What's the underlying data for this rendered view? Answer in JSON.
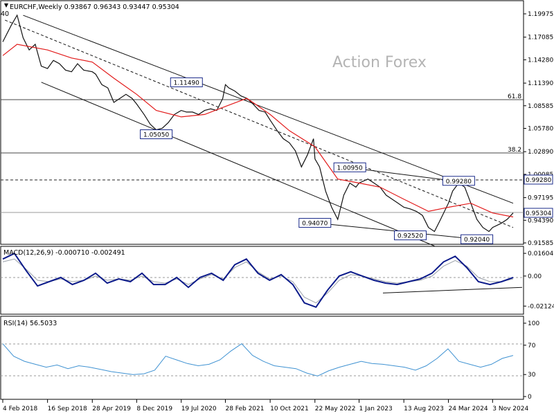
{
  "header": {
    "main": "EURCHF,Weekly  0.93867 0.96343 0.93447 0.95304",
    "corner_fragment": "40",
    "macd": "MACD(12,26,9) -0.000710 -0.002491",
    "rsi": "RSI(14) 56.5033"
  },
  "watermark": "Action Forex",
  "colors": {
    "price": "#111111",
    "ma": "#e21b1b",
    "macd_main": "#0b1a8a",
    "macd_signal": "#9aa0a8",
    "rsi": "#3f92d2",
    "grid": "#9a9a9a",
    "price_box_fill": "#ffffff",
    "price_box_stroke": "#1a2a8a"
  },
  "chart_data": {
    "type": "line",
    "timeframe": "Weekly",
    "symbol": "EURCHF",
    "x": [
      "4 Feb 2018",
      "16 Sep 2018",
      "28 Apr 2019",
      "8 Dec 2019",
      "19 Jul 2020",
      "28 Feb 2021",
      "10 Oct 2021",
      "22 May 2022",
      "1 Jan 2023",
      "13 Aug 2023",
      "24 Mar 2024",
      "3 Nov 2024"
    ],
    "price_axis": [
      "1.19975",
      "1.17085",
      "1.14280",
      "1.11390",
      "1.08585",
      "1.05780",
      "1.02890",
      "1.00085",
      "0.97195",
      "0.94390",
      "0.91585"
    ],
    "ylim": [
      0.91,
      1.205
    ],
    "series": [
      {
        "name": "",
        "role": "close",
        "points": [
          [
            "4 Feb 2018",
            1.165
          ],
          [
            "Mar 2018",
            1.185
          ],
          [
            "Apr 2018",
            1.198
          ],
          [
            "May 2018",
            1.17
          ],
          [
            "Jun 2018",
            1.155
          ],
          [
            "Jul 2018",
            1.162
          ],
          [
            "Aug 2018",
            1.135
          ],
          [
            "16 Sep 2018",
            1.132
          ],
          [
            "Oct 2018",
            1.142
          ],
          [
            "Nov 2018",
            1.138
          ],
          [
            "Dec 2018",
            1.13
          ],
          [
            "Jan 2019",
            1.128
          ],
          [
            "Feb 2019",
            1.138
          ],
          [
            "Mar 2019",
            1.13
          ],
          [
            "28 Apr 2019",
            1.128
          ],
          [
            "May 2019",
            1.125
          ],
          [
            "Jun 2019",
            1.112
          ],
          [
            "Jul 2019",
            1.108
          ],
          [
            "Aug 2019",
            1.09
          ],
          [
            "Sep 2019",
            1.095
          ],
          [
            "Oct 2019",
            1.1
          ],
          [
            "Nov 2019",
            1.095
          ],
          [
            "8 Dec 2019",
            1.088
          ],
          [
            "Jan 2020",
            1.075
          ],
          [
            "Feb 2020",
            1.063
          ],
          [
            "Mar 2020",
            1.056
          ],
          [
            "Apr 2020",
            1.058
          ],
          [
            "May 2020",
            1.065
          ],
          [
            "Jun 2020",
            1.075
          ],
          [
            "19 Jul 2020",
            1.08
          ],
          [
            "Aug 2020",
            1.078
          ],
          [
            "Sep 2020",
            1.078
          ],
          [
            "Oct 2020",
            1.075
          ],
          [
            "Nov 2020",
            1.08
          ],
          [
            "Dec 2020",
            1.082
          ],
          [
            "Jan 2021",
            1.08
          ],
          [
            "Feb 2021",
            1.095
          ],
          [
            "28 Feb 2021",
            1.112
          ],
          [
            "Mar 2021",
            1.108
          ],
          [
            "Apr 2021",
            1.104
          ],
          [
            "May 2021",
            1.098
          ],
          [
            "Jun 2021",
            1.095
          ],
          [
            "Jul 2021",
            1.088
          ],
          [
            "Aug 2021",
            1.08
          ],
          [
            "Sep 2021",
            1.078
          ],
          [
            "10 Oct 2021",
            1.068
          ],
          [
            "Nov 2021",
            1.055
          ],
          [
            "Dec 2021",
            1.045
          ],
          [
            "Jan 2022",
            1.04
          ],
          [
            "Feb 2022",
            1.03
          ],
          [
            "Mar 2022",
            1.01
          ],
          [
            "Apr 2022",
            1.025
          ],
          [
            "May 2022",
            1.045
          ],
          [
            "22 May 2022",
            1.02
          ],
          [
            "Jun 2022",
            1.01
          ],
          [
            "Jul 2022",
            0.98
          ],
          [
            "Aug 2022",
            0.96
          ],
          [
            "Sep 2022",
            0.945
          ],
          [
            "Oct 2022",
            0.975
          ],
          [
            "Nov 2022",
            0.99
          ],
          [
            "Dec 2022",
            0.985
          ],
          [
            "1 Jan 2023",
            0.99
          ],
          [
            "Feb 2023",
            0.995
          ],
          [
            "Mar 2023",
            0.99
          ],
          [
            "Apr 2023",
            0.985
          ],
          [
            "May 2023",
            0.975
          ],
          [
            "Jun 2023",
            0.97
          ],
          [
            "Jul 2023",
            0.965
          ],
          [
            "13 Aug 2023",
            0.96
          ],
          [
            "Sep 2023",
            0.958
          ],
          [
            "Oct 2023",
            0.955
          ],
          [
            "Nov 2023",
            0.95
          ],
          [
            "Dec 2023",
            0.935
          ],
          [
            "Jan 2024",
            0.93
          ],
          [
            "Feb 2024",
            0.945
          ],
          [
            "24 Mar 2024",
            0.965
          ],
          [
            "Apr 2024",
            0.98
          ],
          [
            "May 2024",
            0.99
          ],
          [
            "Jun 2024",
            0.985
          ],
          [
            "Jul 2024",
            0.965
          ],
          [
            "Aug 2024",
            0.945
          ],
          [
            "Sep 2024",
            0.935
          ],
          [
            "Oct 2024",
            0.93
          ],
          [
            "3 Nov 2024",
            0.935
          ],
          [
            "Dec 2024",
            0.94
          ],
          [
            "Jan 2025",
            0.945
          ],
          [
            "Feb 2025",
            0.953
          ]
        ]
      },
      {
        "name": "",
        "role": "moving-average",
        "points": [
          [
            "4 Feb 2018",
            1.148
          ],
          [
            "Apr 2018",
            1.162
          ],
          [
            "16 Sep 2018",
            1.155
          ],
          [
            "Jan 2019",
            1.145
          ],
          [
            "28 Apr 2019",
            1.14
          ],
          [
            "Aug 2019",
            1.12
          ],
          [
            "8 Dec 2019",
            1.1
          ],
          [
            "Mar 2020",
            1.08
          ],
          [
            "19 Jul 2020",
            1.072
          ],
          [
            "Nov 2020",
            1.075
          ],
          [
            "28 Feb 2021",
            1.085
          ],
          [
            "Jun 2021",
            1.095
          ],
          [
            "10 Oct 2021",
            1.075
          ],
          [
            "Jan 2022",
            1.055
          ],
          [
            "22 May 2022",
            1.035
          ],
          [
            "Sep 2022",
            0.995
          ],
          [
            "1 Jan 2023",
            0.99
          ],
          [
            "Apr 2023",
            0.985
          ],
          [
            "13 Aug 2023",
            0.97
          ],
          [
            "Dec 2023",
            0.955
          ],
          [
            "24 Mar 2024",
            0.96
          ],
          [
            "Jul 2024",
            0.965
          ],
          [
            "3 Nov 2024",
            0.953
          ],
          [
            "Feb 2025",
            0.948
          ]
        ]
      }
    ],
    "horizontal_levels": [
      {
        "value": 1.0928,
        "label": "61.8",
        "style": "solid"
      },
      {
        "value": 1.027,
        "label": "38.2",
        "style": "solid"
      },
      {
        "value": 0.9928,
        "label": "0.99280",
        "style": "dashed"
      },
      {
        "value": 0.95304,
        "label": "0.95304",
        "style": "solid"
      }
    ],
    "annotations": [
      {
        "text": "1.11490",
        "at": [
          "Aug 2020",
          1.1149
        ]
      },
      {
        "text": "1.05050",
        "at": [
          "Mar 2020",
          1.0505
        ]
      },
      {
        "text": "1.00950",
        "at": [
          "Nov 2022",
          1.0095
        ]
      },
      {
        "text": "0.99280",
        "at": [
          "May 2024",
          0.9928
        ]
      },
      {
        "text": "0.94070",
        "at": [
          "22 May 2022",
          0.9407
        ]
      },
      {
        "text": "0.92520",
        "at": [
          "Sep 2023",
          0.9252
        ]
      },
      {
        "text": "0.92040",
        "at": [
          "Aug 2024",
          0.9204
        ]
      }
    ],
    "trendlines": [
      {
        "style": "solid",
        "from": [
          "May 2018",
          1.198
        ],
        "to": [
          "Feb 2025",
          0.965
        ]
      },
      {
        "style": "solid",
        "from": [
          "Aug 2018",
          1.115
        ],
        "to": [
          "Jan 2024",
          0.912
        ]
      },
      {
        "style": "dashed",
        "from": [
          "Feb 2018",
          1.192
        ],
        "to": [
          "Feb 2025",
          0.935
        ]
      },
      {
        "style": "solid",
        "from": [
          "Nov 2022",
          1.009
        ],
        "to": [
          "Jul 2024",
          0.99
        ]
      },
      {
        "style": "solid",
        "from": [
          "22 May 2022",
          0.9407
        ],
        "to": [
          "Aug 2024",
          0.9204
        ]
      }
    ],
    "indicators": [
      {
        "name": "MACD(12,26,9)",
        "axis": [
          "0.016046",
          "0.00",
          "-0.021248"
        ],
        "ylim": [
          -0.026,
          0.02
        ],
        "main": [
          0.012,
          0.016,
          0.004,
          -0.007,
          -0.004,
          -0.001,
          -0.006,
          -0.003,
          0.002,
          -0.005,
          -0.002,
          -0.004,
          0.002,
          -0.006,
          -0.006,
          -0.001,
          -0.008,
          -0.001,
          0.002,
          -0.003,
          0.008,
          0.012,
          0.002,
          -0.003,
          0.001,
          -0.006,
          -0.019,
          -0.022,
          -0.01,
          0.0,
          0.003,
          0.0,
          -0.003,
          -0.005,
          -0.006,
          -0.004,
          -0.002,
          0.002,
          0.01,
          0.014,
          0.006,
          -0.004,
          -0.006,
          -0.004,
          -0.001
        ],
        "signal": [
          0.01,
          0.012,
          0.005,
          -0.003,
          -0.004,
          -0.002,
          -0.004,
          -0.003,
          0.0,
          -0.003,
          -0.002,
          -0.003,
          0.0,
          -0.004,
          -0.005,
          -0.002,
          -0.006,
          -0.002,
          0.001,
          -0.002,
          0.006,
          0.01,
          0.003,
          -0.002,
          0.0,
          -0.004,
          -0.015,
          -0.019,
          -0.012,
          -0.003,
          0.001,
          0.0,
          -0.002,
          -0.004,
          -0.005,
          -0.004,
          -0.003,
          0.0,
          0.007,
          0.011,
          0.007,
          -0.001,
          -0.004,
          -0.004,
          -0.002
        ],
        "trendline": [
          -0.012,
          -0.008
        ]
      },
      {
        "name": "RSI(14)",
        "axis": [
          "100",
          "70",
          "30",
          "0"
        ],
        "levels": [
          70,
          30
        ],
        "ylim": [
          0,
          100
        ],
        "values": [
          72,
          55,
          48,
          44,
          40,
          43,
          38,
          42,
          40,
          37,
          34,
          32,
          30,
          31,
          36,
          55,
          50,
          45,
          42,
          44,
          50,
          62,
          72,
          56,
          48,
          42,
          40,
          38,
          32,
          28,
          35,
          40,
          44,
          48,
          45,
          44,
          42,
          40,
          36,
          42,
          52,
          65,
          48,
          44,
          40,
          44,
          52,
          56
        ]
      }
    ]
  }
}
